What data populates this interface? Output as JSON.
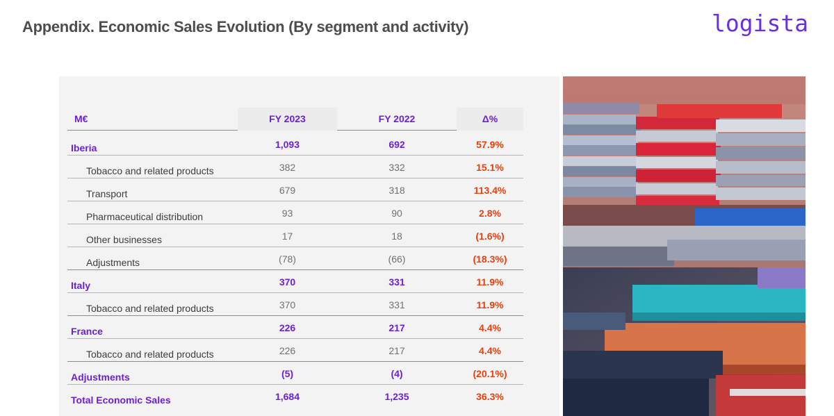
{
  "header": {
    "title": "Appendix. Economic Sales Evolution (By segment and activity)",
    "logo_text": "logista"
  },
  "colors": {
    "brand_purple": "#6b1fd6",
    "delta_orange": "#e8400c",
    "title_gray": "#4d4d4d"
  },
  "table": {
    "columns": [
      "M€",
      "FY 2023",
      "FY 2022",
      "Δ%"
    ],
    "rows": [
      {
        "label": "Iberia",
        "fy2023": "1,093",
        "fy2022": "692",
        "delta": "57.9%"
      },
      {
        "label": "Tobacco and related products",
        "fy2023": "382",
        "fy2022": "332",
        "delta": "15.1%"
      },
      {
        "label": "Transport",
        "fy2023": "679",
        "fy2022": "318",
        "delta": "113.4%"
      },
      {
        "label": "Pharmaceutical distribution",
        "fy2023": "93",
        "fy2022": "90",
        "delta": "2.8%"
      },
      {
        "label": "Other businesses",
        "fy2023": "17",
        "fy2022": "18",
        "delta": "(1.6%)"
      },
      {
        "label": "Adjustments",
        "fy2023": "(78)",
        "fy2022": "(66)",
        "delta": "(18.3%)"
      },
      {
        "label": "Italy",
        "fy2023": "370",
        "fy2022": "331",
        "delta": "11.9%"
      },
      {
        "label": "Tobacco and related products",
        "fy2023": "370",
        "fy2022": "331",
        "delta": "11.9%"
      },
      {
        "label": "France",
        "fy2023": "226",
        "fy2022": "217",
        "delta": "4.4%"
      },
      {
        "label": "Tobacco and related products",
        "fy2023": "226",
        "fy2022": "217",
        "delta": "4.4%"
      },
      {
        "label": "Adjustments",
        "fy2023": "(5)",
        "fy2022": "(4)",
        "delta": "(20.1%)"
      },
      {
        "label": "Total Economic Sales",
        "fy2023": "1,684",
        "fy2022": "1,235",
        "delta": "36.3%"
      }
    ]
  }
}
